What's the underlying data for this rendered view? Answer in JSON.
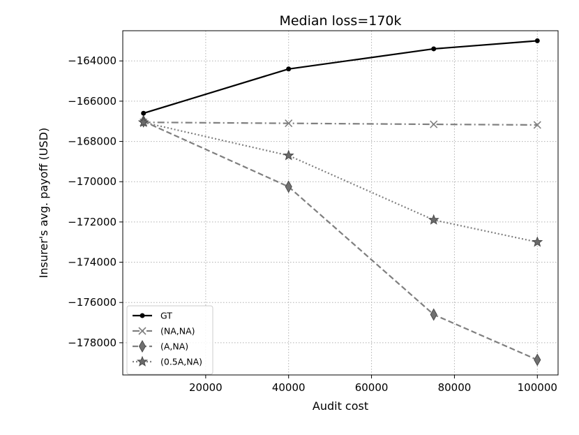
{
  "chart_data": {
    "type": "line",
    "title": "Median loss=170k",
    "xlabel": "Audit cost",
    "ylabel": "Insurer's avg. payoff (USD)",
    "xlim": [
      0,
      105000
    ],
    "ylim": [
      -179600,
      -162500
    ],
    "x_ticks": [
      20000,
      40000,
      60000,
      80000,
      100000
    ],
    "y_ticks": [
      -178000,
      -176000,
      -174000,
      -172000,
      -170000,
      -168000,
      -166000,
      -164000
    ],
    "grid": true,
    "legend_position": "lower-left",
    "x": [
      5000,
      40000,
      75000,
      100000
    ],
    "series": [
      {
        "name": "GT",
        "values": [
          -166600,
          -164400,
          -163400,
          -163000
        ],
        "color": "#000000",
        "line": "solid",
        "marker": "dot"
      },
      {
        "name": "(NA,NA)",
        "values": [
          -167050,
          -167100,
          -167150,
          -167180
        ],
        "color": "#7f7f7f",
        "line": "dashdot",
        "marker": "x"
      },
      {
        "name": "(A,NA)",
        "values": [
          -167000,
          -170250,
          -176600,
          -178850
        ],
        "color": "#7f7f7f",
        "line": "dashed",
        "marker": "diamond"
      },
      {
        "name": "(0.5A,NA)",
        "values": [
          -167050,
          -168700,
          -171900,
          -173000
        ],
        "color": "#7f7f7f",
        "line": "dotted",
        "marker": "star"
      }
    ]
  }
}
